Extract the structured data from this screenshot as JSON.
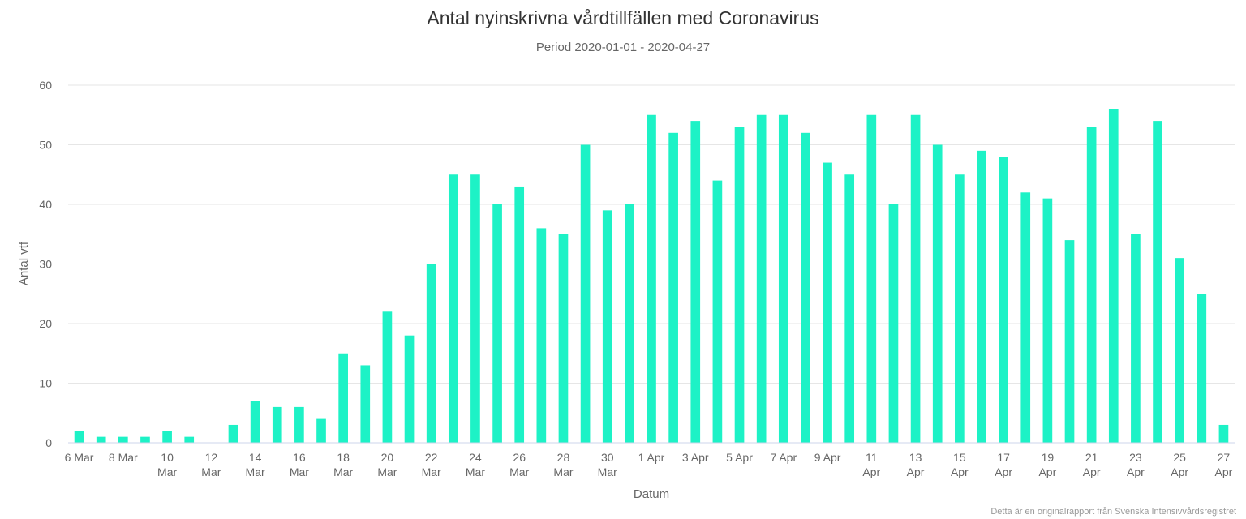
{
  "chart_data": {
    "type": "bar",
    "title": "Antal nyinskrivna vårdtillfällen med Coronavirus",
    "subtitle": "Period 2020-01-01 - 2020-04-27",
    "xlabel": "Datum",
    "ylabel": "Antal vtf",
    "ylim": [
      0,
      60
    ],
    "yticks": [
      "0",
      "10",
      "20",
      "30",
      "40",
      "50",
      "60"
    ],
    "grid": true,
    "color": "#1DF2C6",
    "categories": [
      "2020-03-06",
      "2020-03-07",
      "2020-03-08",
      "2020-03-09",
      "2020-03-10",
      "2020-03-11",
      "2020-03-12",
      "2020-03-13",
      "2020-03-14",
      "2020-03-15",
      "2020-03-16",
      "2020-03-17",
      "2020-03-18",
      "2020-03-19",
      "2020-03-20",
      "2020-03-21",
      "2020-03-22",
      "2020-03-23",
      "2020-03-24",
      "2020-03-25",
      "2020-03-26",
      "2020-03-27",
      "2020-03-28",
      "2020-03-29",
      "2020-03-30",
      "2020-03-31",
      "2020-04-01",
      "2020-04-02",
      "2020-04-03",
      "2020-04-04",
      "2020-04-05",
      "2020-04-06",
      "2020-04-07",
      "2020-04-08",
      "2020-04-09",
      "2020-04-10",
      "2020-04-11",
      "2020-04-12",
      "2020-04-13",
      "2020-04-14",
      "2020-04-15",
      "2020-04-16",
      "2020-04-17",
      "2020-04-18",
      "2020-04-19",
      "2020-04-20",
      "2020-04-21",
      "2020-04-22",
      "2020-04-23",
      "2020-04-24",
      "2020-04-25",
      "2020-04-26",
      "2020-04-27"
    ],
    "values": [
      2,
      1,
      1,
      1,
      2,
      1,
      0,
      3,
      7,
      6,
      6,
      4,
      15,
      13,
      22,
      18,
      30,
      45,
      45,
      40,
      43,
      36,
      35,
      50,
      39,
      40,
      55,
      52,
      54,
      44,
      53,
      55,
      55,
      52,
      47,
      45,
      55,
      40,
      55,
      50,
      45,
      49,
      48,
      42,
      41,
      34,
      53,
      56,
      35,
      54,
      31,
      25,
      3
    ],
    "xtick_labels": [
      {
        "line1": "6 Mar",
        "line2": ""
      },
      {
        "line1": "8 Mar",
        "line2": ""
      },
      {
        "line1": "10",
        "line2": "Mar"
      },
      {
        "line1": "12",
        "line2": "Mar"
      },
      {
        "line1": "14",
        "line2": "Mar"
      },
      {
        "line1": "16",
        "line2": "Mar"
      },
      {
        "line1": "18",
        "line2": "Mar"
      },
      {
        "line1": "20",
        "line2": "Mar"
      },
      {
        "line1": "22",
        "line2": "Mar"
      },
      {
        "line1": "24",
        "line2": "Mar"
      },
      {
        "line1": "26",
        "line2": "Mar"
      },
      {
        "line1": "28",
        "line2": "Mar"
      },
      {
        "line1": "30",
        "line2": "Mar"
      },
      {
        "line1": "1 Apr",
        "line2": ""
      },
      {
        "line1": "3 Apr",
        "line2": ""
      },
      {
        "line1": "5 Apr",
        "line2": ""
      },
      {
        "line1": "7 Apr",
        "line2": ""
      },
      {
        "line1": "9 Apr",
        "line2": ""
      },
      {
        "line1": "11",
        "line2": "Apr"
      },
      {
        "line1": "13",
        "line2": "Apr"
      },
      {
        "line1": "15",
        "line2": "Apr"
      },
      {
        "line1": "17",
        "line2": "Apr"
      },
      {
        "line1": "19",
        "line2": "Apr"
      },
      {
        "line1": "21",
        "line2": "Apr"
      },
      {
        "line1": "23",
        "line2": "Apr"
      },
      {
        "line1": "25",
        "line2": "Apr"
      },
      {
        "line1": "27",
        "line2": "Apr"
      }
    ],
    "credit": "Detta är en originalrapport från Svenska Intensivvårdsregistret"
  }
}
